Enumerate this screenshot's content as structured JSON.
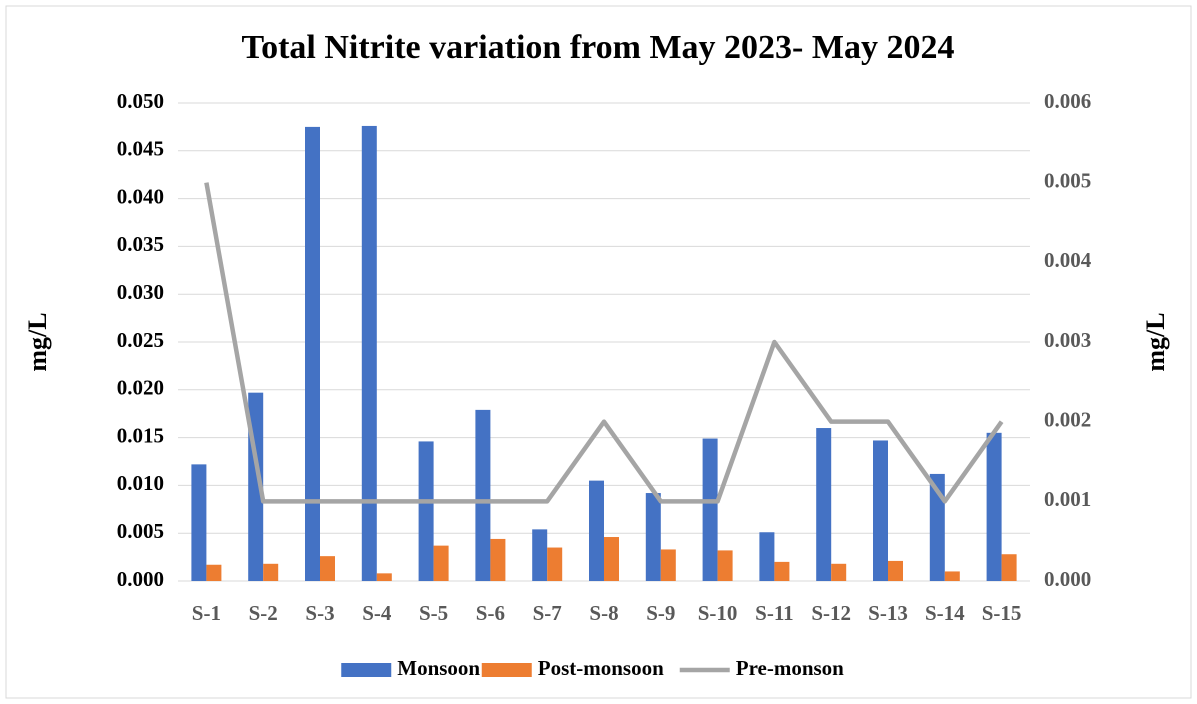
{
  "chart_data": {
    "type": "bar-line",
    "title": "Total Nitrite variation from May 2023- May 2024",
    "ylabel": "mg/L",
    "y2label": "mg/L",
    "categories": [
      "S-1",
      "S-2",
      "S-3",
      "S-4",
      "S-5",
      "S-6",
      "S-7",
      "S-8",
      "S-9",
      "S-10",
      "S-11",
      "S-12",
      "S-13",
      "S-14",
      "S-15"
    ],
    "series": [
      {
        "name": "Monsoon",
        "type": "bar",
        "color": "#4472c4",
        "values": [
          0.0122,
          0.0197,
          0.0475,
          0.0476,
          0.0146,
          0.0179,
          0.0054,
          0.0105,
          0.0092,
          0.0149,
          0.0051,
          0.016,
          0.0147,
          0.0112,
          0.0155
        ]
      },
      {
        "name": "Post-monsoon",
        "type": "bar",
        "color": "#ed7d31",
        "values": [
          0.0017,
          0.0018,
          0.0026,
          0.0008,
          0.0037,
          0.0044,
          0.0035,
          0.0046,
          0.0033,
          0.0032,
          0.002,
          0.0018,
          0.0021,
          0.001,
          0.0028
        ]
      },
      {
        "name": "Pre-monson",
        "type": "line",
        "axis": "y2",
        "color": "#a5a5a5",
        "values": [
          0.005,
          0.001,
          0.001,
          0.001,
          0.001,
          0.001,
          0.001,
          0.002,
          0.001,
          0.001,
          0.003,
          0.002,
          0.002,
          0.001,
          0.002
        ]
      }
    ],
    "ylim": [
      0,
      0.05
    ],
    "yticks": [
      {
        "value": 0,
        "label": "0.000"
      },
      {
        "value": 0.005,
        "label": "0.005"
      },
      {
        "value": 0.01,
        "label": "0.010"
      },
      {
        "value": 0.015,
        "label": "0.015"
      },
      {
        "value": 0.02,
        "label": "0.020"
      },
      {
        "value": 0.025,
        "label": "0.025"
      },
      {
        "value": 0.03,
        "label": "0.030"
      },
      {
        "value": 0.035,
        "label": "0.035"
      },
      {
        "value": 0.04,
        "label": "0.040"
      },
      {
        "value": 0.045,
        "label": "0.045"
      },
      {
        "value": 0.05,
        "label": "0.050"
      }
    ],
    "y2lim": [
      0,
      0.006
    ],
    "y2ticks": [
      {
        "value": 0,
        "label": "0.000"
      },
      {
        "value": 0.001,
        "label": "0.001"
      },
      {
        "value": 0.002,
        "label": "0.002"
      },
      {
        "value": 0.003,
        "label": "0.003"
      },
      {
        "value": 0.004,
        "label": "0.004"
      },
      {
        "value": 0.005,
        "label": "0.005"
      },
      {
        "value": 0.006,
        "label": "0.006"
      }
    ],
    "grid": true,
    "legend": "bottom"
  }
}
